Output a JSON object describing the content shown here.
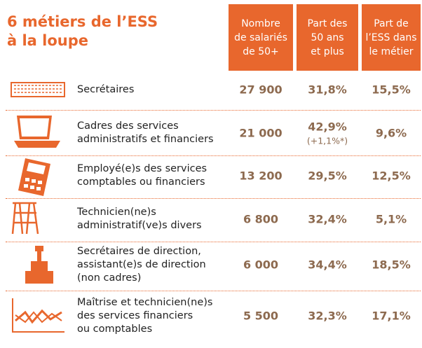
{
  "title": [
    "6 métiers de l’ESS",
    "à la loupe"
  ],
  "headers": [
    [
      "Nombre",
      "de salariés",
      "de 50+"
    ],
    [
      "Part des",
      "50 ans",
      "et plus"
    ],
    [
      "Part de",
      "l’ESS dans",
      "le métier"
    ]
  ],
  "rows": [
    {
      "label": [
        "Secrétaires"
      ],
      "cells": [
        "27 900",
        "31,8%",
        "15,5%"
      ]
    },
    {
      "label": [
        "Cadres des  services",
        "administratifs et financiers"
      ],
      "cells": [
        "21 000",
        "42,9%",
        "9,6%"
      ],
      "note": "(+1,1%*)"
    },
    {
      "label": [
        "Employé(e)s des services",
        "comptables ou financiers"
      ],
      "cells": [
        "13 200",
        "29,5%",
        "12,5%"
      ]
    },
    {
      "label": [
        "Technicien(ne)s",
        "administratif(ve)s divers"
      ],
      "cells": [
        "6 800",
        "32,4%",
        "5,1%"
      ]
    },
    {
      "label": [
        "Secrétaires de direction,",
        "assistant(e)s de direction",
        "(non cadres)"
      ],
      "cells": [
        "6 000",
        "34,4%",
        "18,5%"
      ]
    },
    {
      "label": [
        "Maîtrise et technicien(ne)s",
        "des services financiers",
        "ou comptables"
      ],
      "cells": [
        "5 500",
        "32,3%",
        "17,1%"
      ]
    }
  ]
}
